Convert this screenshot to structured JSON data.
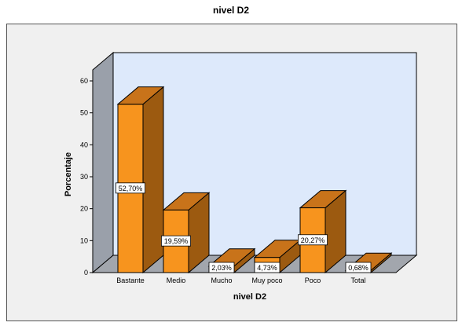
{
  "chart_data": {
    "type": "bar",
    "title": "nivel D2",
    "xlabel": "nivel D2",
    "ylabel": "Porcentaje",
    "categories": [
      "Bastante",
      "Medio",
      "Mucho",
      "Muy poco",
      "Poco",
      "Total"
    ],
    "values": [
      52.7,
      19.59,
      2.03,
      4.73,
      20.27,
      0.68
    ],
    "data_labels": [
      "52,70%",
      "19,59%",
      "2,03%",
      "4,73%",
      "20,27%",
      "0,68%"
    ],
    "ylim": [
      0,
      60
    ],
    "yticks": [
      0,
      10,
      20,
      30,
      40,
      50,
      60
    ],
    "grid": false,
    "legend": "none",
    "style": "3d",
    "colors": {
      "bar_front": "#f7941e",
      "bar_side": "#9c5a10",
      "bar_top": "#c8731a",
      "back_wall": "#dde9fb",
      "side_wall": "#9aa0aa",
      "floor": "#a2a6ad"
    }
  }
}
